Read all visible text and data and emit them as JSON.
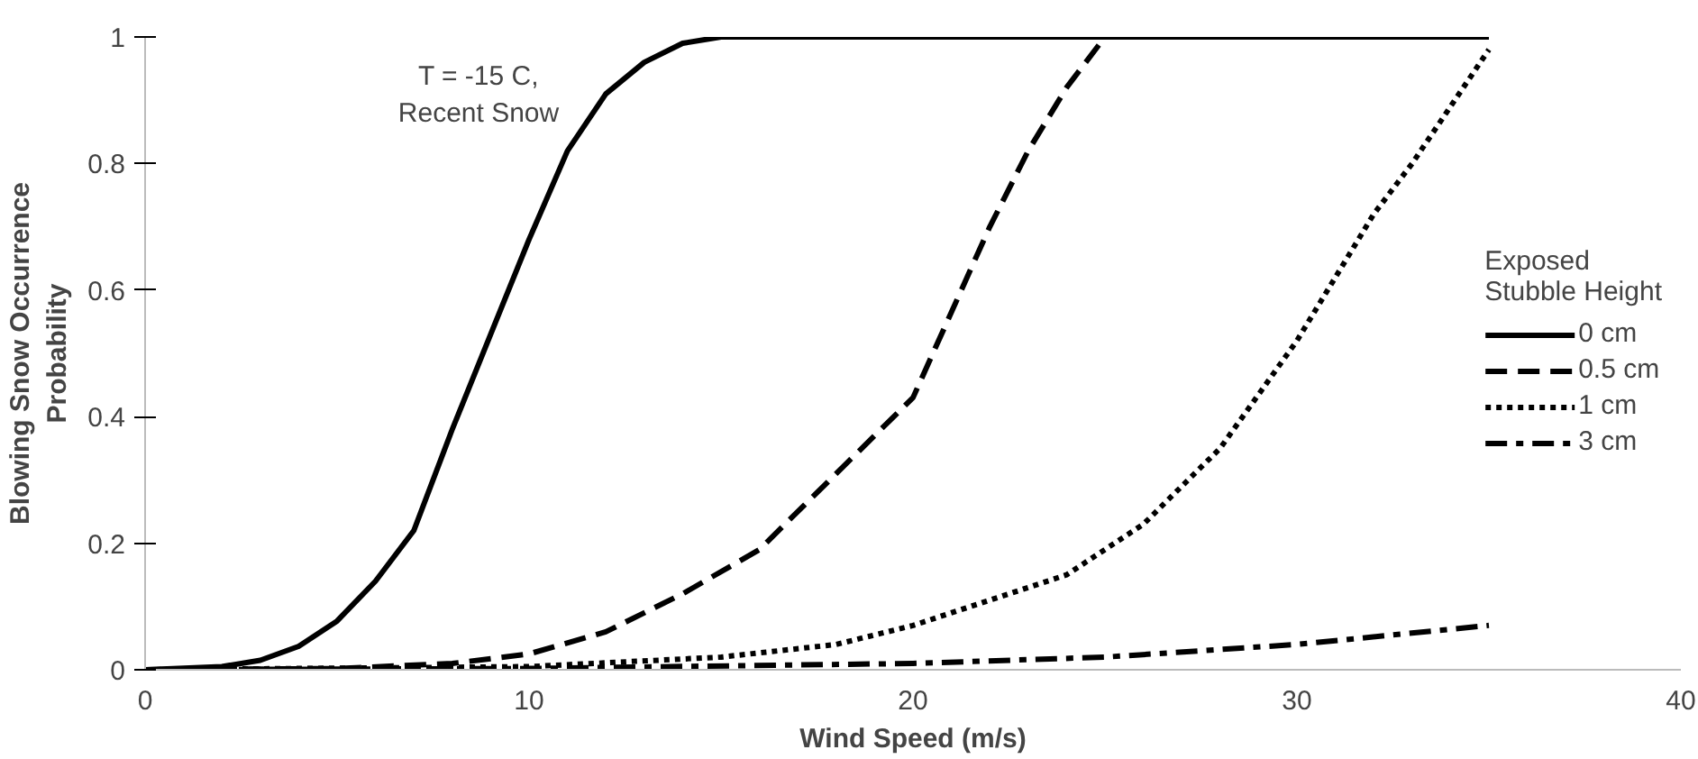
{
  "chart_data": {
    "type": "line",
    "xlabel": "Wind Speed (m/s)",
    "ylabel": "Blowing Snow Occurrence\nProbability",
    "legend_title": "Exposed\nStubble Height",
    "legend": "right",
    "grid": false,
    "marker": "none",
    "xlim": [
      0,
      40
    ],
    "xticks": [
      0,
      10,
      20,
      30,
      40
    ],
    "ylim": [
      0,
      1
    ],
    "yticks": [
      0,
      0.2,
      0.4,
      0.6,
      0.8,
      1
    ],
    "annotations": [
      "T = -15 C,\nRecent Snow"
    ],
    "series": [
      {
        "name": "0 cm",
        "color": "#000000",
        "line_style": "solid",
        "x": [
          0,
          2,
          3,
          4,
          5,
          6,
          7,
          8,
          9,
          10,
          11,
          12,
          13,
          14,
          15,
          16,
          35
        ],
        "values": [
          0,
          0.005,
          0.015,
          0.037,
          0.077,
          0.14,
          0.22,
          0.38,
          0.53,
          0.68,
          0.82,
          0.91,
          0.96,
          0.99,
          1,
          1,
          1
        ]
      },
      {
        "name": "0.5 cm",
        "color": "#000000",
        "line_style": "dashed",
        "x": [
          0,
          5,
          8,
          10,
          12,
          14,
          16,
          18,
          20,
          22,
          23,
          24,
          25
        ],
        "values": [
          0,
          0.002,
          0.01,
          0.025,
          0.06,
          0.12,
          0.19,
          0.31,
          0.43,
          0.7,
          0.82,
          0.92,
          1
        ]
      },
      {
        "name": "1 cm",
        "color": "#000000",
        "line_style": "dotted",
        "x": [
          0,
          10,
          15,
          18,
          20,
          22,
          24,
          26,
          28,
          30,
          32,
          33,
          34,
          35
        ],
        "values": [
          0,
          0.005,
          0.02,
          0.04,
          0.07,
          0.11,
          0.15,
          0.23,
          0.35,
          0.52,
          0.72,
          0.8,
          0.89,
          0.98
        ]
      },
      {
        "name": "3 cm",
        "color": "#000000",
        "line_style": "dashdot",
        "x": [
          0,
          10,
          20,
          25,
          30,
          35
        ],
        "values": [
          0,
          0.002,
          0.01,
          0.02,
          0.04,
          0.07
        ]
      }
    ]
  }
}
